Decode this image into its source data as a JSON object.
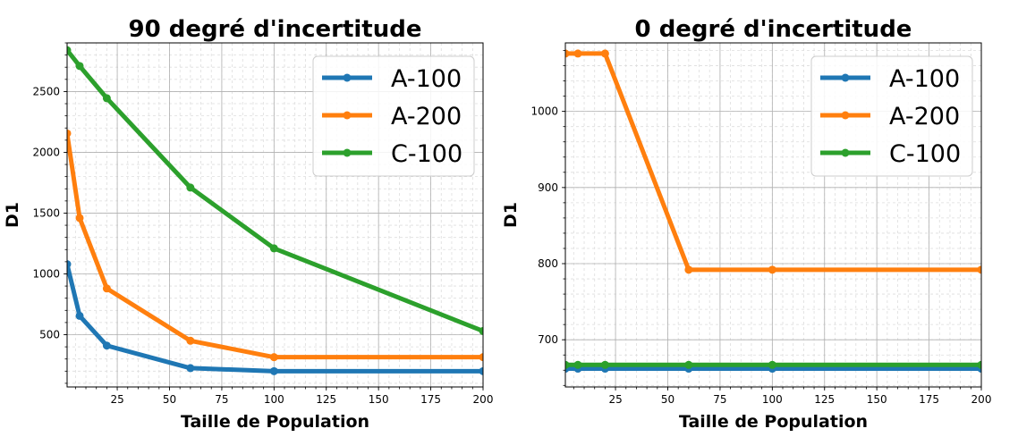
{
  "chart_data": [
    {
      "type": "line",
      "title": "90 degré d'incertitude",
      "xlabel": "Taille de Population",
      "ylabel": "D1",
      "xlim": [
        1,
        200
      ],
      "ylim": [
        70,
        2900
      ],
      "xticks": [
        25,
        50,
        75,
        100,
        125,
        150,
        175,
        200
      ],
      "yticks": [
        500,
        1000,
        1500,
        2000,
        2500
      ],
      "grid": true,
      "legend_position": "top-right",
      "x": [
        1,
        7,
        20,
        60,
        100,
        200
      ],
      "series": [
        {
          "name": "A-100",
          "color": "#1f77b4",
          "values": [
            1080,
            655,
            410,
            225,
            200,
            200
          ]
        },
        {
          "name": "A-200",
          "color": "#ff7f0e",
          "values": [
            2155,
            1460,
            880,
            450,
            315,
            315
          ]
        },
        {
          "name": "C-100",
          "color": "#2ca02c",
          "values": [
            2840,
            2710,
            2445,
            1710,
            1210,
            530
          ]
        }
      ]
    },
    {
      "type": "line",
      "title": "0 degré d'incertitude",
      "xlabel": "Taille de Population",
      "ylabel": "D1",
      "xlim": [
        1,
        200
      ],
      "ylim": [
        638,
        1090
      ],
      "xticks": [
        25,
        50,
        75,
        100,
        125,
        150,
        175,
        200
      ],
      "yticks": [
        700,
        800,
        900,
        1000
      ],
      "grid": true,
      "legend_position": "top-right",
      "x": [
        1,
        7,
        20,
        60,
        100,
        200
      ],
      "series": [
        {
          "name": "A-100",
          "color": "#1f77b4",
          "values": [
            662,
            662,
            662,
            662,
            662,
            662
          ]
        },
        {
          "name": "A-200",
          "color": "#ff7f0e",
          "values": [
            1076,
            1076,
            1076,
            792,
            792,
            792
          ]
        },
        {
          "name": "C-100",
          "color": "#2ca02c",
          "values": [
            667,
            667,
            667,
            667,
            667,
            667
          ]
        }
      ]
    }
  ]
}
